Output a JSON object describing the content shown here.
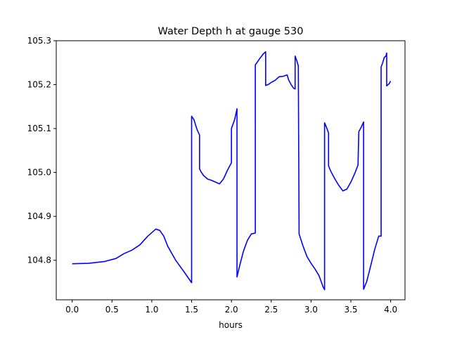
{
  "chart_data": {
    "type": "line",
    "title": "Water Depth h at gauge 530",
    "xlabel": "hours",
    "ylabel": "",
    "xlim": [
      -0.2,
      4.18
    ],
    "ylim": [
      104.71,
      105.3
    ],
    "xticks": [
      0.0,
      0.5,
      1.0,
      1.5,
      2.0,
      2.5,
      3.0,
      3.5,
      4.0
    ],
    "xtick_labels": [
      "0.0",
      "0.5",
      "1.0",
      "1.5",
      "2.0",
      "2.5",
      "3.0",
      "3.5",
      "4.0"
    ],
    "yticks": [
      104.8,
      104.9,
      105.0,
      105.1,
      105.2,
      105.3
    ],
    "ytick_labels": [
      "104.8",
      "104.9",
      "105.0",
      "105.1",
      "105.2",
      "105.3"
    ],
    "grid": false,
    "series": [
      {
        "color": "#0000ff",
        "x": [
          0.0,
          0.2,
          0.4,
          0.55,
          0.65,
          0.75,
          0.85,
          0.95,
          1.05,
          1.1,
          1.15,
          1.2,
          1.3,
          1.4,
          1.5,
          1.5,
          1.53,
          1.55,
          1.57,
          1.6,
          1.6,
          1.62,
          1.65,
          1.7,
          1.75,
          1.8,
          1.85,
          1.9,
          1.95,
          2.0,
          2.0,
          2.04,
          2.07,
          2.07,
          2.1,
          2.15,
          2.2,
          2.25,
          2.3,
          2.3,
          2.32,
          2.35,
          2.38,
          2.4,
          2.42,
          2.43,
          2.43,
          2.46,
          2.5,
          2.55,
          2.6,
          2.65,
          2.7,
          2.72,
          2.75,
          2.78,
          2.8,
          2.8,
          2.82,
          2.84,
          2.85,
          2.85,
          2.9,
          2.95,
          3.0,
          3.05,
          3.1,
          3.15,
          3.17,
          3.17,
          3.2,
          3.22,
          3.22,
          3.25,
          3.3,
          3.35,
          3.4,
          3.45,
          3.5,
          3.55,
          3.59,
          3.6,
          3.63,
          3.66,
          3.66,
          3.7,
          3.75,
          3.8,
          3.85,
          3.88,
          3.88,
          3.9,
          3.92,
          3.94,
          3.95,
          3.95,
          3.98,
          4.0
        ],
        "y": [
          104.792,
          104.793,
          104.797,
          104.804,
          104.815,
          104.823,
          104.835,
          104.855,
          104.871,
          104.868,
          104.855,
          104.832,
          104.8,
          104.775,
          104.749,
          105.128,
          105.12,
          105.108,
          105.097,
          105.085,
          105.008,
          105.001,
          104.993,
          104.985,
          104.982,
          104.978,
          104.974,
          104.985,
          105.005,
          105.022,
          105.1,
          105.12,
          105.145,
          104.762,
          104.785,
          104.82,
          104.845,
          104.86,
          104.862,
          105.245,
          105.25,
          105.258,
          105.265,
          105.27,
          105.273,
          105.275,
          105.198,
          105.2,
          105.205,
          105.21,
          105.218,
          105.219,
          105.222,
          105.21,
          105.2,
          105.192,
          105.19,
          105.265,
          105.255,
          105.243,
          104.86,
          104.86,
          104.832,
          104.808,
          104.793,
          104.78,
          104.765,
          104.74,
          104.733,
          105.113,
          105.1,
          105.09,
          105.015,
          105.002,
          104.985,
          104.97,
          104.958,
          104.962,
          104.978,
          104.998,
          105.017,
          105.093,
          105.103,
          105.115,
          104.734,
          104.752,
          104.788,
          104.825,
          104.855,
          104.855,
          105.24,
          105.25,
          105.262,
          105.265,
          105.272,
          105.197,
          105.202,
          105.208
        ]
      }
    ]
  }
}
